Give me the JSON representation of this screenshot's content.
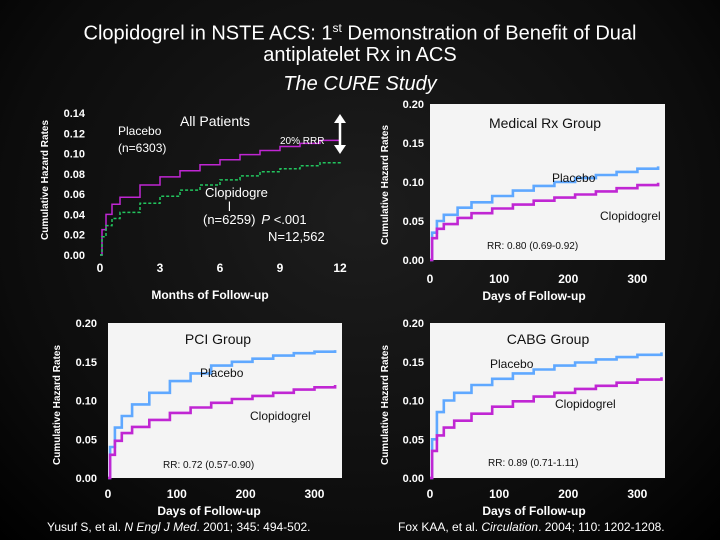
{
  "title": {
    "line1_pre": "Clopidogrel in NSTE ACS: 1",
    "line1_sup": "st",
    "line1_post": " Demonstration of Benefit of Dual",
    "line2": "antiplatelet Rx in ACS",
    "line3": "The CURE Study"
  },
  "citations": {
    "left_authors": "Yusuf S, et al. ",
    "left_journal": "N Engl J Med",
    "left_rest": ". 2001; 345: 494-502.",
    "right_authors": "Fox KAA, et al. ",
    "right_journal": "Circulation",
    "right_rest": ". 2004; 110: 1202-1208."
  },
  "colors": {
    "placebo": "#5fa8ff",
    "clopidogrel": "#c026d3",
    "green": "#22c55e",
    "text": "#ffffff",
    "background": "#0c0c0c"
  },
  "chart_data": [
    {
      "panel": "all-patients",
      "type": "line",
      "title": "All Patients",
      "xlabel": "Months of Follow-up",
      "ylabel": "Cumulative Hazard Rates",
      "xlim": [
        0,
        12
      ],
      "ylim": [
        0,
        0.14
      ],
      "xticks": [
        "0",
        "3",
        "6",
        "9",
        "12"
      ],
      "yticks": [
        "0.00",
        "0.02",
        "0.04",
        "0.06",
        "0.08",
        "0.10",
        "0.12",
        "0.14"
      ],
      "annotations": {
        "placebo_label": "Placebo",
        "placebo_n": "(n=6303)",
        "rrr": "20% RRR",
        "clop_label_a": "Clopidogre",
        "clop_label_b": "l",
        "clop_n_pre": "(n=6259)",
        "clop_p": "P",
        "clop_p_val": " <.001",
        "total_n": "N=12,562"
      },
      "series": [
        {
          "key": "placebo",
          "color": "#c026d3",
          "x": [
            0,
            0.1,
            0.3,
            0.6,
            1,
            2,
            3,
            4,
            5,
            6,
            7,
            8,
            9,
            10,
            11,
            12
          ],
          "y": [
            0,
            0.025,
            0.04,
            0.05,
            0.057,
            0.069,
            0.077,
            0.083,
            0.089,
            0.094,
            0.099,
            0.103,
            0.107,
            0.11,
            0.113,
            0.115
          ]
        },
        {
          "key": "clopidogrel",
          "color": "#22c55e",
          "x": [
            0,
            0.1,
            0.3,
            0.6,
            1,
            2,
            3,
            4,
            5,
            6,
            7,
            8,
            9,
            10,
            11,
            12
          ],
          "y": [
            0,
            0.018,
            0.029,
            0.036,
            0.042,
            0.051,
            0.058,
            0.064,
            0.069,
            0.074,
            0.078,
            0.082,
            0.085,
            0.088,
            0.091,
            0.093
          ]
        }
      ]
    },
    {
      "panel": "medical-rx",
      "type": "line",
      "title": "Medical Rx Group",
      "xlabel": "Days of Follow-up",
      "ylabel": "Cumulative Hazard Rates",
      "xlim": [
        0,
        340
      ],
      "ylim": [
        0,
        0.2
      ],
      "xticks": [
        {
          "v": 0,
          "t": "0"
        },
        {
          "v": 100,
          "t": "100"
        },
        {
          "v": 200,
          "t": "200"
        },
        {
          "v": 300,
          "t": "300"
        }
      ],
      "yticks": [
        "0.00",
        "0.05",
        "0.10",
        "0.15",
        "0.20"
      ],
      "annotations": {
        "placebo_label": "Placebo",
        "clopidogrel_label": "Clopidogrel",
        "rr": "RR: 0.80 (0.69-0.92)"
      },
      "series": [
        {
          "key": "placebo",
          "color": "#5fa8ff",
          "x": [
            0,
            3,
            10,
            20,
            40,
            60,
            90,
            120,
            150,
            180,
            210,
            240,
            270,
            300,
            330
          ],
          "y": [
            0,
            0.035,
            0.05,
            0.058,
            0.067,
            0.074,
            0.082,
            0.089,
            0.095,
            0.1,
            0.105,
            0.109,
            0.113,
            0.117,
            0.12
          ]
        },
        {
          "key": "clopidogrel",
          "color": "#c026d3",
          "x": [
            0,
            3,
            10,
            20,
            40,
            60,
            90,
            120,
            150,
            180,
            210,
            240,
            270,
            300,
            330
          ],
          "y": [
            0,
            0.028,
            0.04,
            0.046,
            0.054,
            0.06,
            0.066,
            0.071,
            0.076,
            0.08,
            0.084,
            0.088,
            0.092,
            0.096,
            0.099
          ]
        }
      ]
    },
    {
      "panel": "pci",
      "type": "line",
      "title": "PCI Group",
      "xlabel": "Days of Follow-up",
      "ylabel": "Cumulative Hazard Rates",
      "xlim": [
        0,
        340
      ],
      "ylim": [
        0,
        0.2
      ],
      "xticks": [
        {
          "v": 0,
          "t": "0"
        },
        {
          "v": 100,
          "t": "100"
        },
        {
          "v": 200,
          "t": "200"
        },
        {
          "v": 300,
          "t": "300"
        }
      ],
      "yticks": [
        "0.00",
        "0.05",
        "0.10",
        "0.15",
        "0.20"
      ],
      "annotations": {
        "placebo_label": "Placebo",
        "clopidogrel_label": "Clopidogrel",
        "rr": "RR: 0.72 (0.57-0.90)"
      },
      "series": [
        {
          "key": "placebo",
          "color": "#5fa8ff",
          "x": [
            0,
            3,
            10,
            20,
            35,
            60,
            90,
            120,
            150,
            180,
            210,
            240,
            270,
            300,
            330
          ],
          "y": [
            0,
            0.04,
            0.065,
            0.08,
            0.095,
            0.11,
            0.125,
            0.135,
            0.145,
            0.15,
            0.154,
            0.158,
            0.161,
            0.163,
            0.165
          ]
        },
        {
          "key": "clopidogrel",
          "color": "#c026d3",
          "x": [
            0,
            3,
            10,
            20,
            35,
            60,
            90,
            120,
            150,
            180,
            210,
            240,
            270,
            300,
            330
          ],
          "y": [
            0,
            0.03,
            0.048,
            0.058,
            0.066,
            0.075,
            0.084,
            0.091,
            0.097,
            0.102,
            0.106,
            0.11,
            0.114,
            0.117,
            0.12
          ]
        }
      ]
    },
    {
      "panel": "cabg",
      "type": "line",
      "title": "CABG Group",
      "xlabel": "Days of Follow-up",
      "ylabel": "Cumulative Hazard Rates",
      "xlim": [
        0,
        340
      ],
      "ylim": [
        0,
        0.2
      ],
      "xticks": [
        {
          "v": 0,
          "t": "0"
        },
        {
          "v": 100,
          "t": "100"
        },
        {
          "v": 200,
          "t": "200"
        },
        {
          "v": 300,
          "t": "300"
        }
      ],
      "yticks": [
        "0.00",
        "0.05",
        "0.10",
        "0.15",
        "0.20"
      ],
      "annotations": {
        "placebo_label": "Placebo",
        "clopidogrel_label": "Clopidogrel",
        "rr": "RR: 0.89 (0.71-1.11)"
      },
      "series": [
        {
          "key": "placebo",
          "color": "#5fa8ff",
          "x": [
            0,
            3,
            10,
            20,
            35,
            60,
            90,
            120,
            150,
            180,
            210,
            240,
            270,
            300,
            335
          ],
          "y": [
            0,
            0.05,
            0.085,
            0.1,
            0.11,
            0.12,
            0.128,
            0.135,
            0.14,
            0.145,
            0.149,
            0.153,
            0.156,
            0.159,
            0.162
          ]
        },
        {
          "key": "clopidogrel",
          "color": "#c026d3",
          "x": [
            0,
            3,
            10,
            20,
            35,
            60,
            90,
            120,
            150,
            180,
            210,
            240,
            270,
            300,
            335
          ],
          "y": [
            0,
            0.035,
            0.055,
            0.065,
            0.074,
            0.083,
            0.092,
            0.099,
            0.105,
            0.11,
            0.115,
            0.119,
            0.123,
            0.127,
            0.13
          ]
        }
      ]
    }
  ]
}
